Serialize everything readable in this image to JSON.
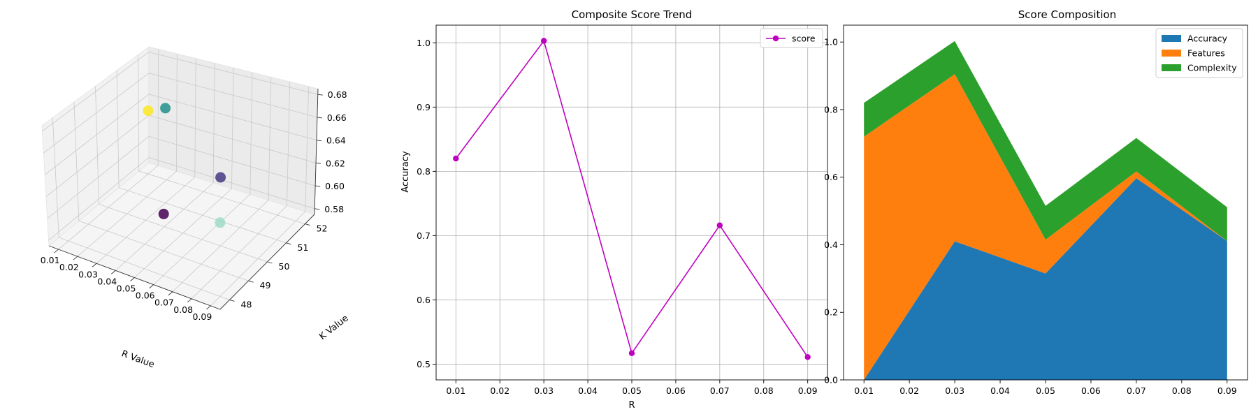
{
  "chart_data": [
    {
      "type": "scatter3d",
      "title": "",
      "xlabel": "R Value",
      "ylabel": "K Value",
      "zlabel": "",
      "x_ticks": [
        "0.01",
        "0.02",
        "0.03",
        "0.04",
        "0.05",
        "0.06",
        "0.07",
        "0.08",
        "0.09"
      ],
      "y_ticks": [
        "48",
        "49",
        "50",
        "51",
        "52"
      ],
      "z_ticks": [
        "0.58",
        "0.60",
        "0.62",
        "0.64",
        "0.66",
        "0.68"
      ],
      "xlim": [
        0.005,
        0.095
      ],
      "ylim": [
        47.5,
        52.5
      ],
      "zlim": [
        0.575,
        0.685
      ],
      "points": [
        {
          "x": 0.01,
          "y": 52,
          "z": 0.635,
          "color": "#fde725"
        },
        {
          "x": 0.03,
          "y": 51,
          "z": 0.665,
          "color": "#21918c"
        },
        {
          "x": 0.05,
          "y": 49,
          "z": 0.61,
          "color": "#440154"
        },
        {
          "x": 0.07,
          "y": 50,
          "z": 0.64,
          "color": "#443983"
        },
        {
          "x": 0.09,
          "y": 48,
          "z": 0.645,
          "color": "#a0dac8"
        }
      ],
      "grid": true
    },
    {
      "type": "line",
      "title": "Composite Score Trend",
      "xlabel": "R",
      "ylabel": "Accuracy",
      "x": [
        0.01,
        0.03,
        0.05,
        0.07,
        0.09
      ],
      "series": [
        {
          "name": "score",
          "values": [
            0.82,
            1.003,
            0.517,
            0.716,
            0.511
          ],
          "color": "#bf00bf"
        }
      ],
      "x_ticks": [
        "0.01",
        "0.02",
        "0.03",
        "0.04",
        "0.05",
        "0.06",
        "0.07",
        "0.08",
        "0.09"
      ],
      "y_ticks": [
        "0.5",
        "0.6",
        "0.7",
        "0.8",
        "0.9",
        "1.0"
      ],
      "xlim": [
        0.0055,
        0.0945
      ],
      "ylim": [
        0.4755,
        1.0275
      ],
      "legend": "top-right",
      "grid": true
    },
    {
      "type": "area",
      "title": "Score Composition",
      "xlabel": "",
      "ylabel": "",
      "x": [
        0.01,
        0.03,
        0.05,
        0.07,
        0.09
      ],
      "series": [
        {
          "name": "Accuracy",
          "values": [
            0.0,
            0.41,
            0.315,
            0.597,
            0.411
          ],
          "color": "#1f77b4"
        },
        {
          "name": "Features",
          "values": [
            0.72,
            0.495,
            0.1,
            0.02,
            0.0
          ],
          "color": "#ff7f0e"
        },
        {
          "name": "Complexity",
          "values": [
            0.1,
            0.098,
            0.1,
            0.099,
            0.1
          ],
          "color": "#2ca02c"
        }
      ],
      "x_ticks": [
        "0.01",
        "0.02",
        "0.03",
        "0.04",
        "0.05",
        "0.06",
        "0.07",
        "0.08",
        "0.09"
      ],
      "y_ticks": [
        "0.0",
        "0.2",
        "0.4",
        "0.6",
        "0.8",
        "1.0"
      ],
      "xlim": [
        0.0055,
        0.0945
      ],
      "ylim": [
        0.0,
        1.05
      ],
      "legend": "top-right",
      "grid": false
    }
  ]
}
